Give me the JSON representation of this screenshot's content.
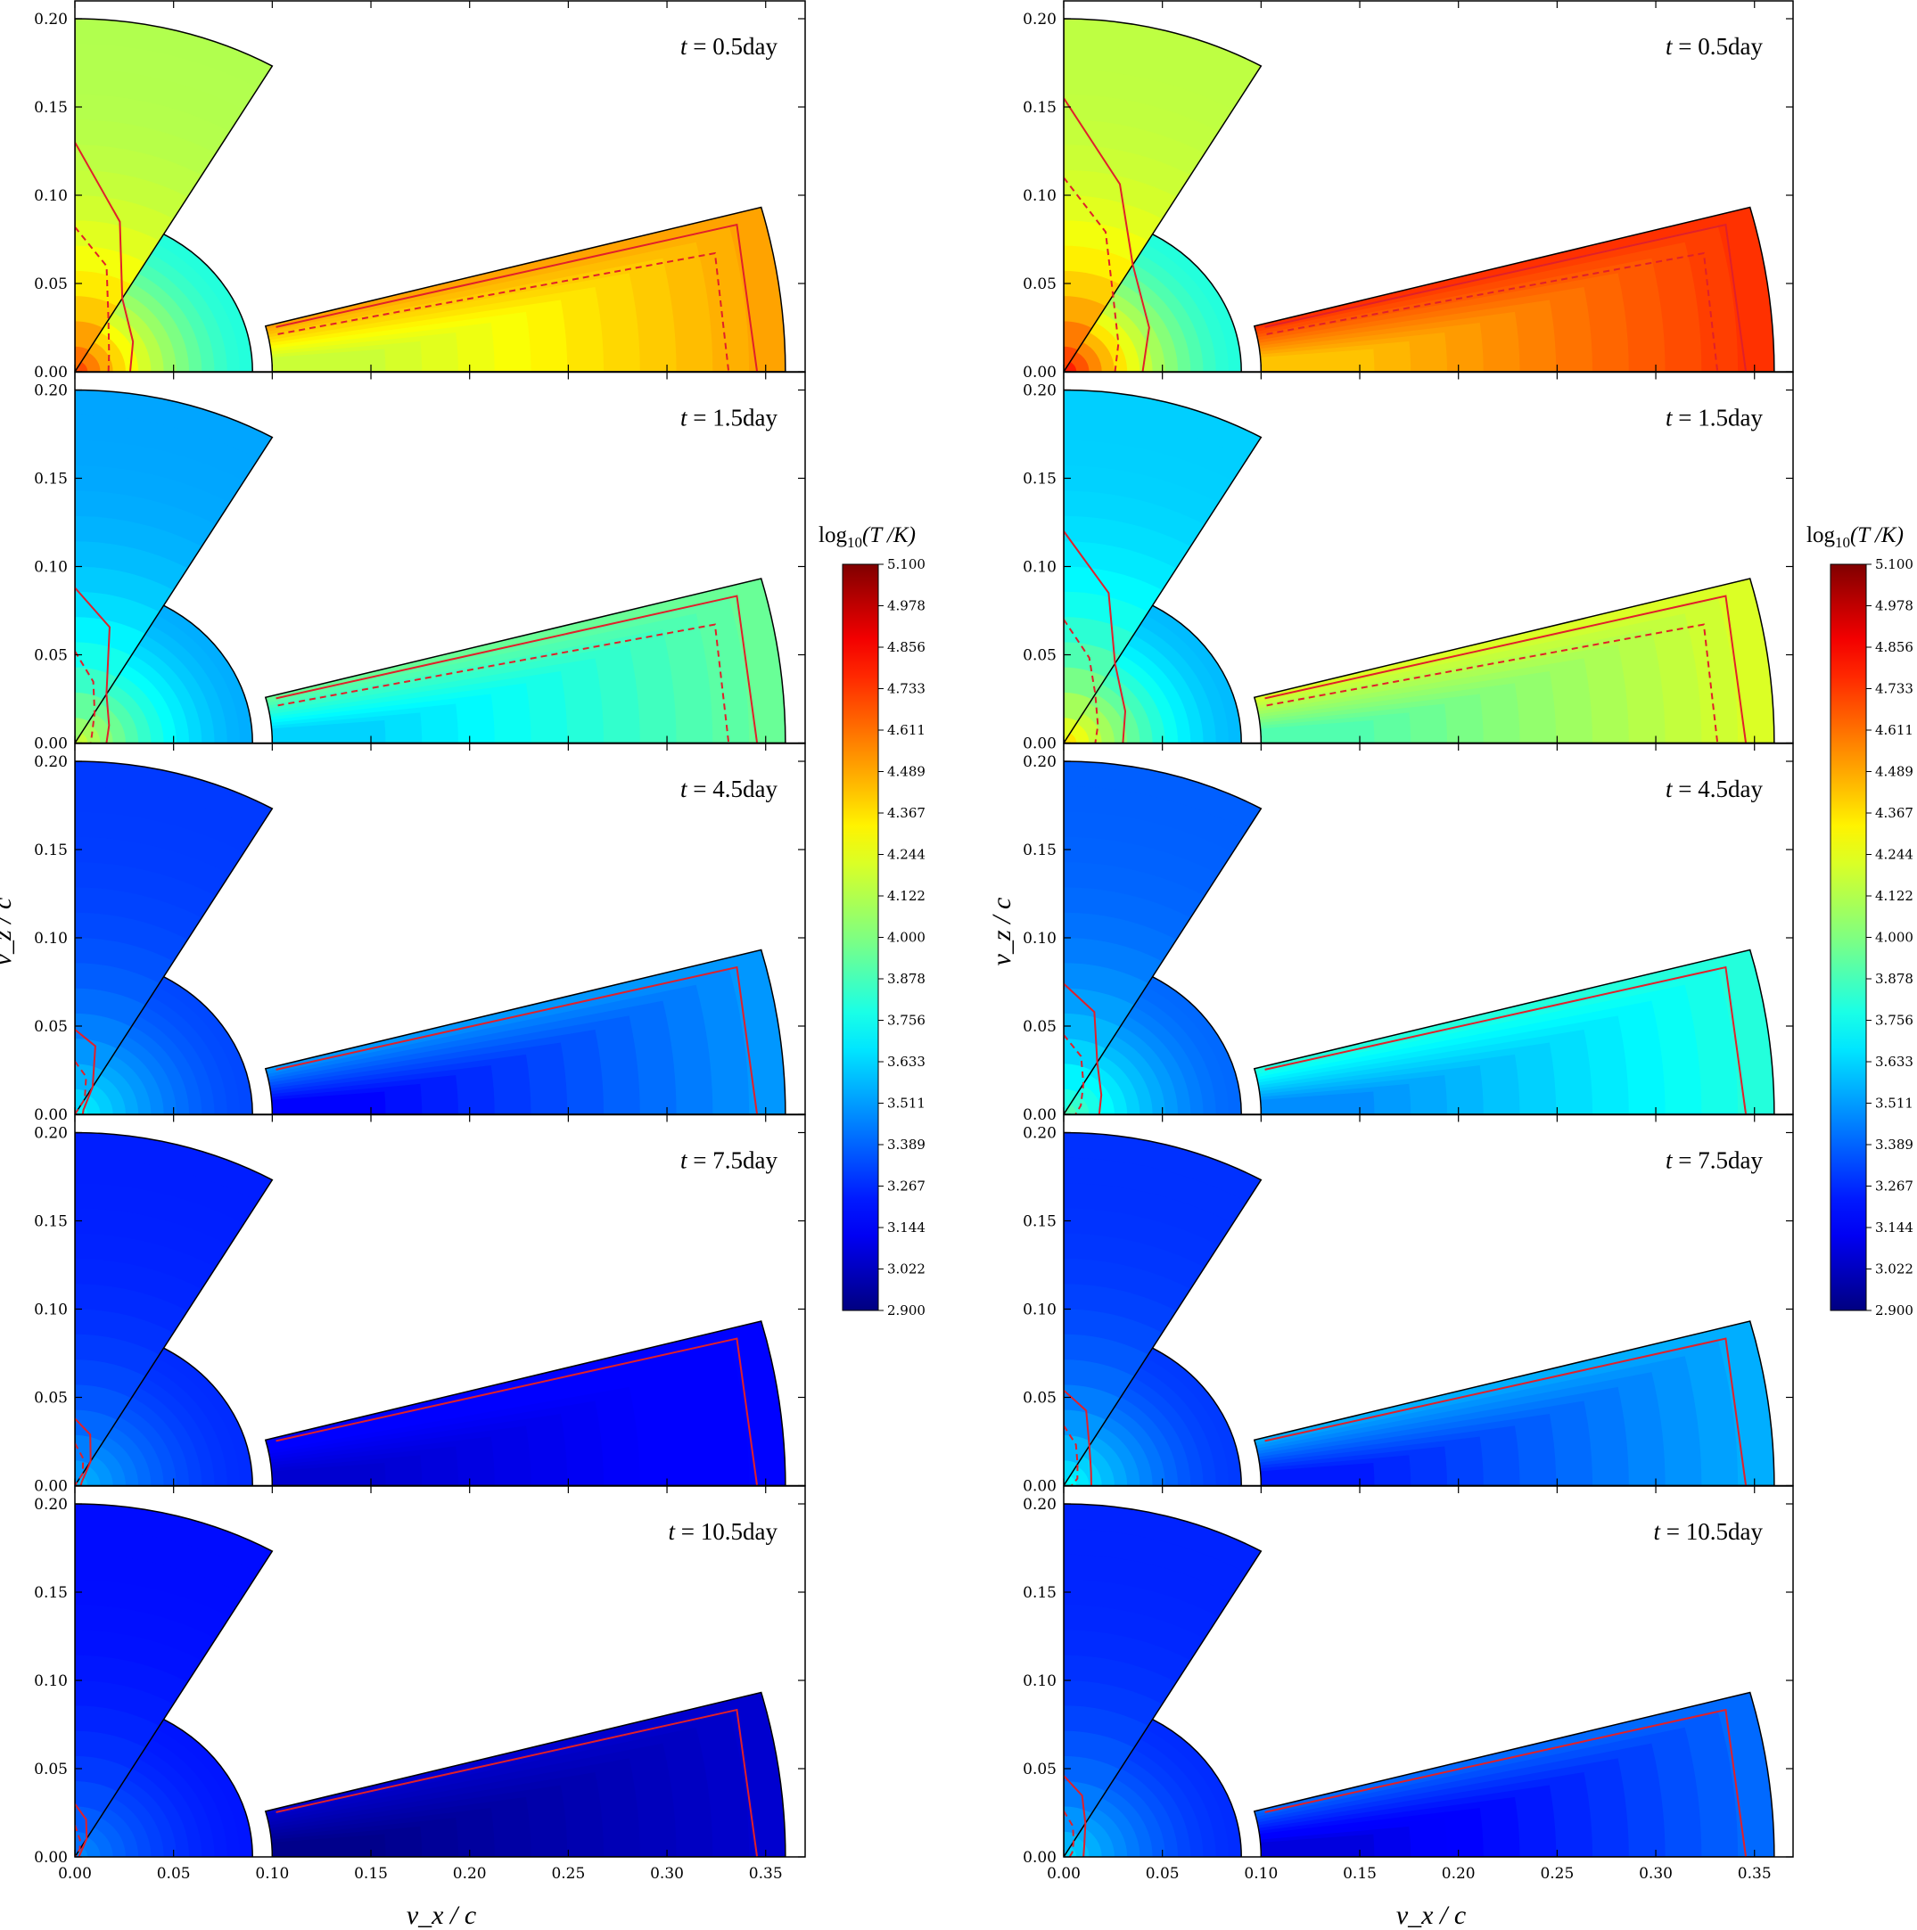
{
  "chart_data": {
    "type": "heatmap",
    "quantity": "log10(T/K)",
    "xlabel": "v_x / c",
    "ylabel": "v_z / c",
    "xlim": [
      0,
      0.37
    ],
    "ylim": [
      0,
      0.2
    ],
    "x_ticks": [
      "0.00",
      "0.05",
      "0.10",
      "0.15",
      "0.20",
      "0.25",
      "0.30",
      "0.35"
    ],
    "y_ticks": [
      "0.00",
      "0.05",
      "0.10",
      "0.15",
      "0.20"
    ],
    "colorbar": {
      "title_prefix": "log",
      "title_sub": "10",
      "title_suffix": "(T /K)",
      "range": [
        2.9,
        5.1
      ],
      "ticks": [
        "5.100",
        "4.978",
        "4.856",
        "4.733",
        "4.611",
        "4.489",
        "4.367",
        "4.244",
        "4.122",
        "4.000",
        "3.878",
        "3.756",
        "3.633",
        "3.511",
        "3.389",
        "3.267",
        "3.144",
        "3.022",
        "2.900"
      ],
      "colormap": "jet"
    },
    "columns": [
      {
        "panels": [
          {
            "time": "t = 0.5day",
            "polar_T": 4.12,
            "disk_T": 3.8,
            "disk_core_T": 4.8,
            "wind_T": 4.5,
            "solid_contour": [
              0.13,
              0.088,
              0.048,
              0.034,
              0.028
            ],
            "dashed_contour": [
              0.082,
              0.062,
              0.034,
              0.02,
              0.017
            ]
          },
          {
            "time": "t = 1.5day",
            "polar_T": 3.53,
            "disk_T": 3.55,
            "disk_core_T": 4.25,
            "wind_T": 3.95,
            "solid_contour": [
              0.088,
              0.068,
              0.032,
              0.02,
              0.016
            ],
            "dashed_contour": [
              0.052,
              0.036,
              0.02,
              0.01,
              0.008
            ]
          },
          {
            "time": "t = 4.5day",
            "polar_T": 3.3,
            "disk_T": 3.33,
            "disk_core_T": 3.75,
            "wind_T": 3.5,
            "solid_contour": [
              0.048,
              0.04,
              0.018,
              0.005,
              0.004
            ],
            "dashed_contour": [
              0.03,
              0.022,
              0.01,
              0.0,
              0.0
            ]
          },
          {
            "time": "t = 7.5day",
            "polar_T": 3.24,
            "disk_T": 3.27,
            "disk_core_T": 3.6,
            "wind_T": 3.18,
            "solid_contour": [
              0.038,
              0.03,
              0.016,
              0.004,
              0.003
            ],
            "dashed_contour": [
              0.024,
              0.016,
              0.008,
              0.0,
              0.0
            ]
          },
          {
            "time": "t = 10.5day",
            "polar_T": 3.2,
            "disk_T": 3.22,
            "disk_core_T": 3.5,
            "wind_T": 3.05,
            "solid_contour": [
              0.03,
              0.022,
              0.012,
              0.003,
              0.002
            ],
            "dashed_contour": [
              0.018,
              0.01,
              0.005,
              0.0,
              0.0
            ]
          }
        ]
      },
      {
        "panels": [
          {
            "time": "t = 0.5day",
            "polar_T": 4.15,
            "disk_T": 3.8,
            "disk_core_T": 4.92,
            "wind_T": 4.75,
            "solid_contour": [
              0.155,
              0.11,
              0.07,
              0.05,
              0.04
            ],
            "dashed_contour": [
              0.11,
              0.082,
              0.05,
              0.032,
              0.026
            ]
          },
          {
            "time": "t = 1.5day",
            "polar_T": 3.62,
            "disk_T": 3.58,
            "disk_core_T": 4.45,
            "wind_T": 4.22,
            "solid_contour": [
              0.12,
              0.088,
              0.052,
              0.036,
              0.03
            ],
            "dashed_contour": [
              0.07,
              0.05,
              0.032,
              0.02,
              0.016
            ]
          },
          {
            "time": "t = 4.5day",
            "polar_T": 3.38,
            "disk_T": 3.4,
            "disk_core_T": 3.95,
            "wind_T": 3.8,
            "solid_contour": [
              0.074,
              0.06,
              0.034,
              0.022,
              0.018
            ],
            "dashed_contour": [
              0.045,
              0.034,
              0.02,
              0.01,
              0.006
            ]
          },
          {
            "time": "t = 7.5day",
            "polar_T": 3.28,
            "disk_T": 3.3,
            "disk_core_T": 3.78,
            "wind_T": 3.55,
            "solid_contour": [
              0.054,
              0.044,
              0.026,
              0.016,
              0.014
            ],
            "dashed_contour": [
              0.034,
              0.024,
              0.014,
              0.008,
              0.004
            ]
          },
          {
            "time": "t = 10.5day",
            "polar_T": 3.25,
            "disk_T": 3.27,
            "disk_core_T": 3.68,
            "wind_T": 3.4,
            "solid_contour": [
              0.046,
              0.036,
              0.022,
              0.012,
              0.01
            ],
            "dashed_contour": [
              0.026,
              0.018,
              0.01,
              0.005,
              0.003
            ]
          }
        ]
      }
    ]
  }
}
